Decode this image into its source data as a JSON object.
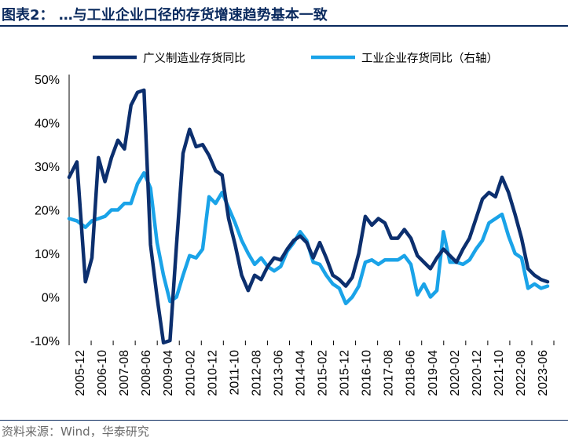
{
  "title": "图表2： …与工业企业口径的存货增速趋势基本一致",
  "source": "资料来源：Wind，华泰研究",
  "chart_data": {
    "type": "line",
    "y_ticks": [
      "50%",
      "40%",
      "30%",
      "20%",
      "10%",
      "0%",
      "-10%"
    ],
    "ylim": [
      -10,
      50
    ],
    "x_tick_labels": [
      "2005-12",
      "2006-10",
      "2007-08",
      "2008-06",
      "2009-04",
      "2010-02",
      "2010-12",
      "2011-10",
      "2012-08",
      "2013-06",
      "2014-04",
      "2015-02",
      "2015-12",
      "2016-10",
      "2017-08",
      "2018-06",
      "2019-04",
      "2020-02",
      "2020-12",
      "2021-10",
      "2022-08",
      "2023-06"
    ],
    "series": [
      {
        "name": "广义制造业存货同比",
        "color": "#0c2f6e",
        "values": [
          [
            0,
            27.5
          ],
          [
            1.2,
            31
          ],
          [
            2.5,
            3.5
          ],
          [
            3.5,
            9
          ],
          [
            4.5,
            32
          ],
          [
            5.5,
            26.5
          ],
          [
            6.5,
            32
          ],
          [
            7.5,
            36
          ],
          [
            8.5,
            34
          ],
          [
            9.5,
            44
          ],
          [
            10.5,
            47
          ],
          [
            11.5,
            47.5
          ],
          [
            12.5,
            12
          ],
          [
            13.5,
            0
          ],
          [
            14.5,
            -10.5
          ],
          [
            15.5,
            -10
          ],
          [
            16.5,
            12
          ],
          [
            17.5,
            33
          ],
          [
            18.5,
            38.5
          ],
          [
            19.5,
            34.5
          ],
          [
            20.5,
            35
          ],
          [
            21.5,
            32.5
          ],
          [
            22.5,
            29
          ],
          [
            23.5,
            28
          ],
          [
            24.5,
            18
          ],
          [
            25.5,
            12
          ],
          [
            26.5,
            5
          ],
          [
            27.5,
            1.5
          ],
          [
            28.5,
            5
          ],
          [
            29.5,
            4
          ],
          [
            30.5,
            7
          ],
          [
            31.5,
            9
          ],
          [
            32.5,
            8.5
          ],
          [
            33.5,
            11
          ],
          [
            34.5,
            13
          ],
          [
            35.5,
            14
          ],
          [
            36.5,
            12.5
          ],
          [
            37.5,
            9
          ],
          [
            38.5,
            12.5
          ],
          [
            39.5,
            9
          ],
          [
            40.5,
            5
          ],
          [
            41.5,
            4
          ],
          [
            42.5,
            2.5
          ],
          [
            43.5,
            4.5
          ],
          [
            44.5,
            10
          ],
          [
            45.5,
            18.5
          ],
          [
            46.5,
            16.5
          ],
          [
            47.5,
            18
          ],
          [
            48.5,
            17
          ],
          [
            49.5,
            13.5
          ],
          [
            50.5,
            13.5
          ],
          [
            51.5,
            15.5
          ],
          [
            52.5,
            13.5
          ],
          [
            53.5,
            9.5
          ],
          [
            54.5,
            8
          ],
          [
            55.5,
            6.5
          ],
          [
            56.5,
            9
          ],
          [
            57.5,
            11
          ],
          [
            58.5,
            9.5
          ],
          [
            59.5,
            8
          ],
          [
            60.5,
            11
          ],
          [
            61.5,
            13.5
          ],
          [
            62.5,
            18
          ],
          [
            63.5,
            22.5
          ],
          [
            64.5,
            24
          ],
          [
            65.5,
            23
          ],
          [
            66.5,
            27.5
          ],
          [
            67.5,
            24
          ],
          [
            68.5,
            19
          ],
          [
            69.5,
            13.5
          ],
          [
            70.5,
            6.5
          ],
          [
            71.5,
            5
          ],
          [
            72.5,
            4
          ],
          [
            73.5,
            3.5
          ]
        ]
      },
      {
        "name": "工业企业存货同比（右轴）",
        "color": "#1aa3e8",
        "values": [
          [
            0,
            18
          ],
          [
            1.2,
            17.5
          ],
          [
            2.5,
            16
          ],
          [
            3.5,
            17.5
          ],
          [
            4.5,
            18
          ],
          [
            5.5,
            18.5
          ],
          [
            6.5,
            20
          ],
          [
            7.5,
            20
          ],
          [
            8.5,
            21.5
          ],
          [
            9.5,
            21.5
          ],
          [
            10.5,
            26
          ],
          [
            11.5,
            28.5
          ],
          [
            12.5,
            25
          ],
          [
            13.5,
            12.5
          ],
          [
            14.5,
            5
          ],
          [
            15.5,
            -1
          ],
          [
            16.5,
            0
          ],
          [
            17.5,
            5
          ],
          [
            18.5,
            9.5
          ],
          [
            19.5,
            9
          ],
          [
            20.5,
            11
          ],
          [
            21.5,
            23
          ],
          [
            22.5,
            21.5
          ],
          [
            23.5,
            24
          ],
          [
            24.5,
            20.5
          ],
          [
            25.5,
            17
          ],
          [
            26.5,
            13
          ],
          [
            27.5,
            10
          ],
          [
            28.5,
            7.5
          ],
          [
            29.5,
            9
          ],
          [
            30.5,
            7
          ],
          [
            31.5,
            6
          ],
          [
            32.5,
            7
          ],
          [
            33.5,
            10.5
          ],
          [
            34.5,
            12.5
          ],
          [
            35.5,
            15
          ],
          [
            36.5,
            13
          ],
          [
            37.5,
            8
          ],
          [
            38.5,
            7.5
          ],
          [
            39.5,
            5
          ],
          [
            40.5,
            3
          ],
          [
            41.5,
            2
          ],
          [
            42.5,
            -1.5
          ],
          [
            43.5,
            0
          ],
          [
            44.5,
            2.5
          ],
          [
            45.5,
            8
          ],
          [
            46.5,
            8.5
          ],
          [
            47.5,
            7.5
          ],
          [
            48.5,
            8.5
          ],
          [
            49.5,
            8.5
          ],
          [
            50.5,
            8.5
          ],
          [
            51.5,
            9.5
          ],
          [
            52.5,
            7.5
          ],
          [
            53.5,
            0.5
          ],
          [
            54.5,
            3
          ],
          [
            55.5,
            0
          ],
          [
            56.5,
            1.5
          ],
          [
            57.5,
            15
          ],
          [
            58.5,
            8
          ],
          [
            59.5,
            8
          ],
          [
            60.5,
            7.5
          ],
          [
            61.5,
            8.5
          ],
          [
            62.5,
            11
          ],
          [
            63.5,
            13
          ],
          [
            64.5,
            17
          ],
          [
            65.5,
            18
          ],
          [
            66.5,
            19
          ],
          [
            67.5,
            14
          ],
          [
            68.5,
            10
          ],
          [
            69.5,
            9
          ],
          [
            70.5,
            2
          ],
          [
            71.5,
            3
          ],
          [
            72.5,
            2
          ],
          [
            73.5,
            2.5
          ]
        ]
      }
    ],
    "grid": false,
    "legend_position": "top"
  }
}
